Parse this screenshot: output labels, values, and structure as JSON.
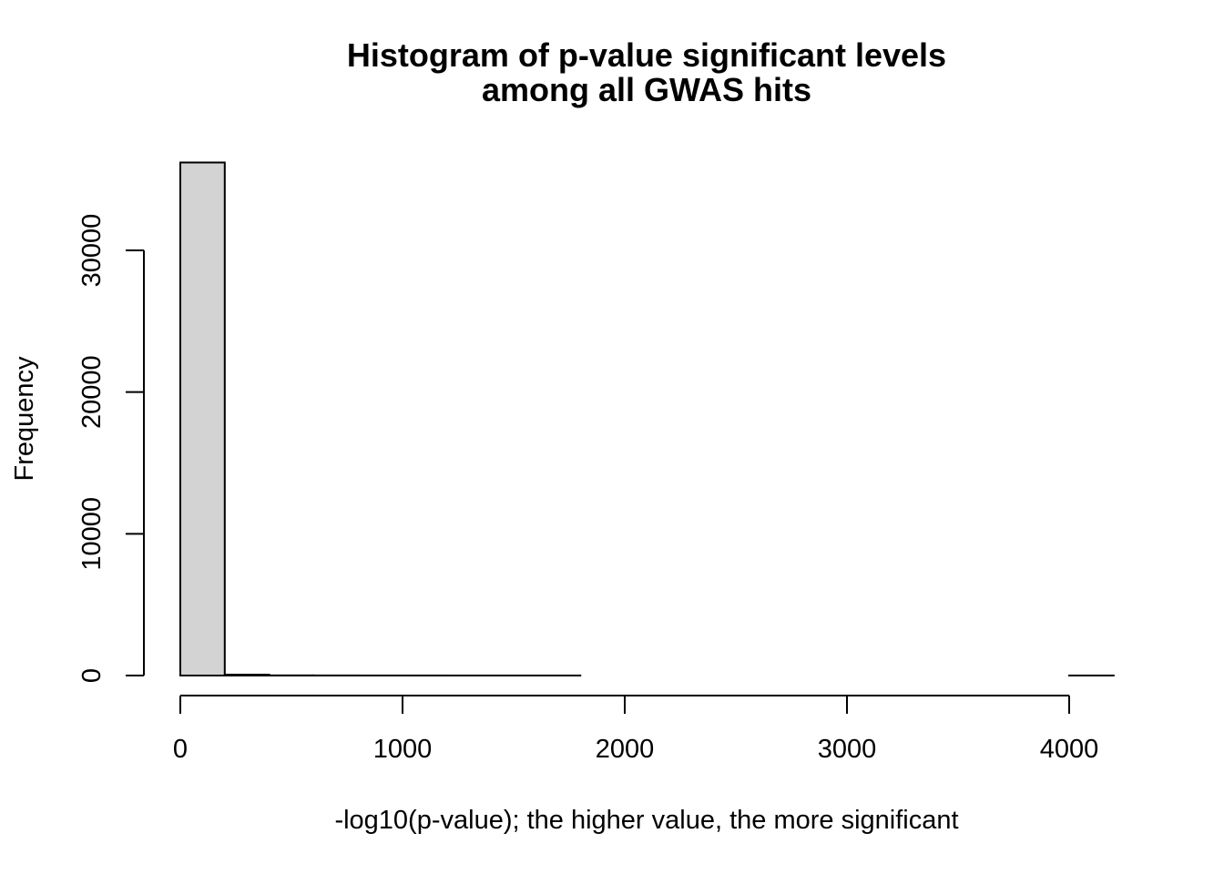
{
  "chart_data": {
    "type": "bar",
    "subtype": "histogram",
    "title_lines": [
      "Histogram of p-value significant levels",
      "among all GWAS hits"
    ],
    "xlabel": "-log10(p-value); the higher value, the more significant",
    "ylabel": "Frequency",
    "bin_width": 200,
    "bins": [
      {
        "start": 0,
        "end": 200,
        "count": 36200
      },
      {
        "start": 200,
        "end": 400,
        "count": 60
      },
      {
        "start": 400,
        "end": 600,
        "count": 10
      },
      {
        "start": 600,
        "end": 800,
        "count": 5
      },
      {
        "start": 800,
        "end": 1000,
        "count": 3
      },
      {
        "start": 1000,
        "end": 1200,
        "count": 2
      },
      {
        "start": 1200,
        "end": 1400,
        "count": 1
      },
      {
        "start": 1400,
        "end": 1600,
        "count": 1
      },
      {
        "start": 1600,
        "end": 1800,
        "count": 1
      },
      {
        "start": 1800,
        "end": 2000,
        "count": 0
      },
      {
        "start": 2000,
        "end": 2200,
        "count": 0
      },
      {
        "start": 2200,
        "end": 2400,
        "count": 0
      },
      {
        "start": 2400,
        "end": 2600,
        "count": 0
      },
      {
        "start": 2600,
        "end": 2800,
        "count": 0
      },
      {
        "start": 2800,
        "end": 3000,
        "count": 0
      },
      {
        "start": 3000,
        "end": 3200,
        "count": 0
      },
      {
        "start": 3200,
        "end": 3400,
        "count": 0
      },
      {
        "start": 3400,
        "end": 3600,
        "count": 0
      },
      {
        "start": 3600,
        "end": 3800,
        "count": 0
      },
      {
        "start": 3800,
        "end": 4000,
        "count": 0
      },
      {
        "start": 4000,
        "end": 4200,
        "count": 1
      }
    ],
    "x_ticks": [
      0,
      1000,
      2000,
      3000,
      4000
    ],
    "y_ticks": [
      0,
      10000,
      20000,
      30000
    ],
    "xlim": [
      0,
      4200
    ],
    "ylim": [
      0,
      36200
    ],
    "grid": false,
    "legend": "none",
    "colors": {
      "bar_fill": "#d3d3d3",
      "bar_stroke": "#000000"
    }
  }
}
